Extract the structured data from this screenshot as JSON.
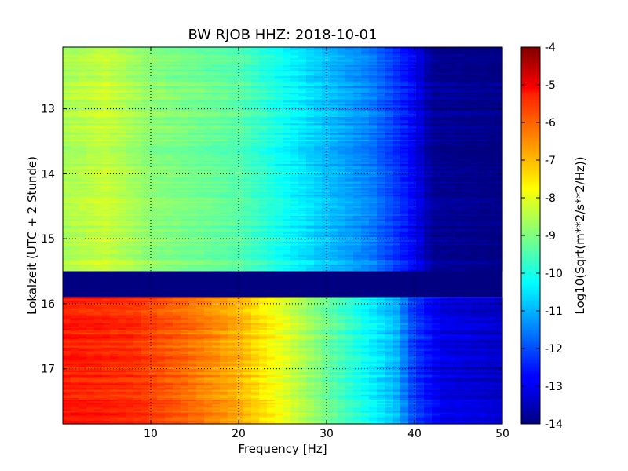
{
  "chart_data": {
    "type": "heatmap",
    "title": "BW RJOB HHZ: 2018-10-01",
    "xlabel": "Frequency [Hz]",
    "ylabel": "Lokalzeit (UTC + 2 Stunde)",
    "xlim": [
      0,
      50
    ],
    "ylim": [
      12.05,
      17.85
    ],
    "y_inverted": true,
    "x_ticks": [
      "10",
      "20",
      "30",
      "40",
      "50"
    ],
    "y_ticks": [
      "13",
      "14",
      "15",
      "16",
      "17"
    ],
    "grid": true,
    "colorbar": {
      "label": "Log10(Sqrt(m**2/s**2/Hz))",
      "range": [
        -14,
        -4
      ],
      "ticks": [
        "-4",
        "-5",
        "-6",
        "-7",
        "-8",
        "-9",
        "-10",
        "-11",
        "-12",
        "-13",
        "-14"
      ],
      "colormap": "jet"
    },
    "regions": [
      {
        "time_range": [
          12.05,
          15.5
        ],
        "freq_profile_db": [
          [
            0,
            -8.6
          ],
          [
            5,
            -8.3
          ],
          [
            10,
            -8.9
          ],
          [
            20,
            -9.4
          ],
          [
            28,
            -10.6
          ],
          [
            35,
            -11.5
          ],
          [
            40,
            -12.8
          ],
          [
            42,
            -13.8
          ],
          [
            50,
            -14
          ]
        ]
      },
      {
        "time_range": [
          15.5,
          15.9
        ],
        "level": -14
      },
      {
        "time_range": [
          15.9,
          17.85
        ],
        "freq_profile_db": [
          [
            0,
            -5.5
          ],
          [
            8,
            -5.7
          ],
          [
            15,
            -6.4
          ],
          [
            20,
            -7.0
          ],
          [
            25,
            -8.0
          ],
          [
            30,
            -9.2
          ],
          [
            35,
            -10.3
          ],
          [
            38,
            -11.0
          ],
          [
            40,
            -12.2
          ],
          [
            43,
            -13.0
          ],
          [
            50,
            -13.3
          ]
        ]
      }
    ]
  }
}
